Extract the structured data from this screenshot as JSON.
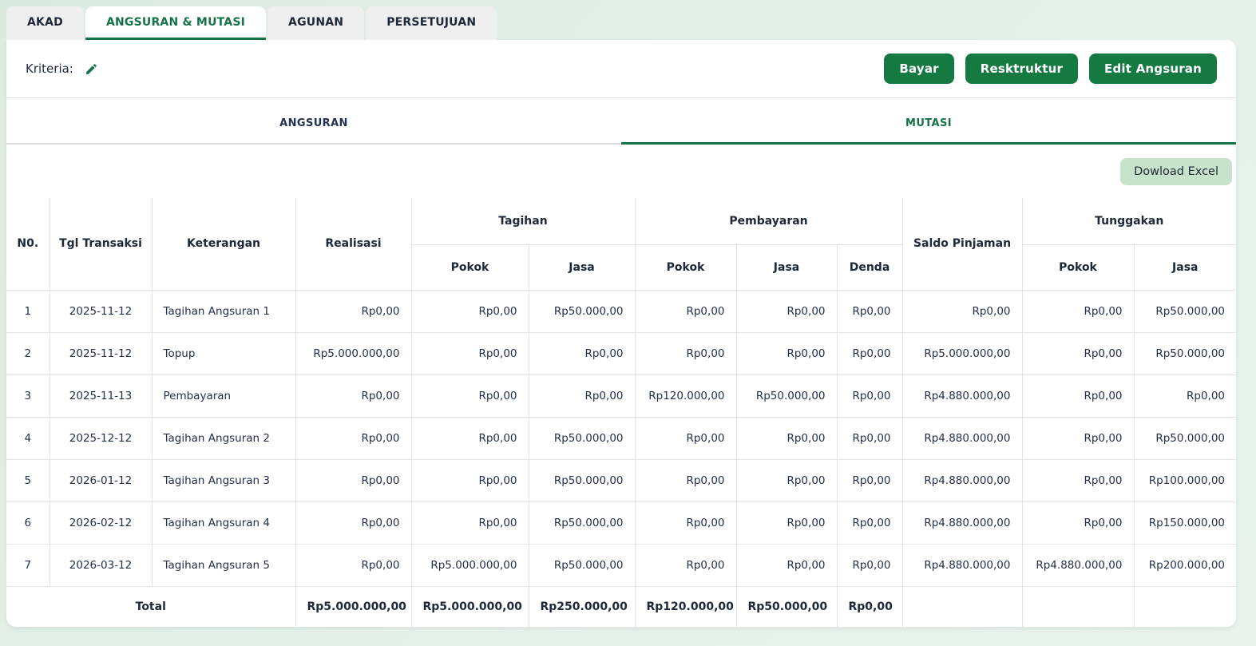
{
  "colors": {
    "accent_green": "#157347",
    "button_green": "#157a42",
    "excel_bg": "#c7e3cb",
    "page_bg": "#e3efe8",
    "inactive_tab_bg": "#efefef"
  },
  "tabs": [
    {
      "label": "AKAD",
      "active": false
    },
    {
      "label": "ANGSURAN & MUTASI",
      "active": true
    },
    {
      "label": "AGUNAN",
      "active": false
    },
    {
      "label": "PERSETUJUAN",
      "active": false
    }
  ],
  "kriteria": {
    "label": "Kriteria:",
    "edit_icon": "pencil-icon"
  },
  "actions": {
    "bayar": "Bayar",
    "resktruktur": "Resktruktur",
    "edit_angsuran": "Edit Angsuran"
  },
  "subtabs": [
    {
      "label": "ANGSURAN",
      "active": false
    },
    {
      "label": "MUTASI",
      "active": true
    }
  ],
  "download_button": "Dowload Excel",
  "table": {
    "headers": {
      "no": "N0.",
      "tgl": "Tgl Transaksi",
      "keterangan": "Keterangan",
      "realisasi": "Realisasi",
      "tagihan": "Tagihan",
      "pembayaran": "Pembayaran",
      "saldo": "Saldo Pinjaman",
      "tunggakan": "Tunggakan",
      "pokok": "Pokok",
      "jasa": "Jasa",
      "denda": "Denda"
    },
    "rows": [
      {
        "no": "1",
        "tgl": "2025-11-12",
        "keterangan": "Tagihan Angsuran 1",
        "realisasi": "Rp0,00",
        "tagihan_pokok": "Rp0,00",
        "tagihan_jasa": "Rp50.000,00",
        "pembayaran_pokok": "Rp0,00",
        "pembayaran_jasa": "Rp0,00",
        "denda": "Rp0,00",
        "saldo": "Rp0,00",
        "tunggakan_pokok": "Rp0,00",
        "tunggakan_jasa": "Rp50.000,00"
      },
      {
        "no": "2",
        "tgl": "2025-11-12",
        "keterangan": "Topup",
        "realisasi": "Rp5.000.000,00",
        "tagihan_pokok": "Rp0,00",
        "tagihan_jasa": "Rp0,00",
        "pembayaran_pokok": "Rp0,00",
        "pembayaran_jasa": "Rp0,00",
        "denda": "Rp0,00",
        "saldo": "Rp5.000.000,00",
        "tunggakan_pokok": "Rp0,00",
        "tunggakan_jasa": "Rp50.000,00"
      },
      {
        "no": "3",
        "tgl": "2025-11-13",
        "keterangan": "Pembayaran",
        "realisasi": "Rp0,00",
        "tagihan_pokok": "Rp0,00",
        "tagihan_jasa": "Rp0,00",
        "pembayaran_pokok": "Rp120.000,00",
        "pembayaran_jasa": "Rp50.000,00",
        "denda": "Rp0,00",
        "saldo": "Rp4.880.000,00",
        "tunggakan_pokok": "Rp0,00",
        "tunggakan_jasa": "Rp0,00"
      },
      {
        "no": "4",
        "tgl": "2025-12-12",
        "keterangan": "Tagihan Angsuran 2",
        "realisasi": "Rp0,00",
        "tagihan_pokok": "Rp0,00",
        "tagihan_jasa": "Rp50.000,00",
        "pembayaran_pokok": "Rp0,00",
        "pembayaran_jasa": "Rp0,00",
        "denda": "Rp0,00",
        "saldo": "Rp4.880.000,00",
        "tunggakan_pokok": "Rp0,00",
        "tunggakan_jasa": "Rp50.000,00"
      },
      {
        "no": "5",
        "tgl": "2026-01-12",
        "keterangan": "Tagihan Angsuran 3",
        "realisasi": "Rp0,00",
        "tagihan_pokok": "Rp0,00",
        "tagihan_jasa": "Rp50.000,00",
        "pembayaran_pokok": "Rp0,00",
        "pembayaran_jasa": "Rp0,00",
        "denda": "Rp0,00",
        "saldo": "Rp4.880.000,00",
        "tunggakan_pokok": "Rp0,00",
        "tunggakan_jasa": "Rp100.000,00"
      },
      {
        "no": "6",
        "tgl": "2026-02-12",
        "keterangan": "Tagihan Angsuran 4",
        "realisasi": "Rp0,00",
        "tagihan_pokok": "Rp0,00",
        "tagihan_jasa": "Rp50.000,00",
        "pembayaran_pokok": "Rp0,00",
        "pembayaran_jasa": "Rp0,00",
        "denda": "Rp0,00",
        "saldo": "Rp4.880.000,00",
        "tunggakan_pokok": "Rp0,00",
        "tunggakan_jasa": "Rp150.000,00"
      },
      {
        "no": "7",
        "tgl": "2026-03-12",
        "keterangan": "Tagihan Angsuran 5",
        "realisasi": "Rp0,00",
        "tagihan_pokok": "Rp5.000.000,00",
        "tagihan_jasa": "Rp50.000,00",
        "pembayaran_pokok": "Rp0,00",
        "pembayaran_jasa": "Rp0,00",
        "denda": "Rp0,00",
        "saldo": "Rp4.880.000,00",
        "tunggakan_pokok": "Rp4.880.000,00",
        "tunggakan_jasa": "Rp200.000,00"
      }
    ],
    "total": {
      "label": "Total",
      "realisasi": "Rp5.000.000,00",
      "tagihan_pokok": "Rp5.000.000,00",
      "tagihan_jasa": "Rp250.000,00",
      "pembayaran_pokok": "Rp120.000,00",
      "pembayaran_jasa": "Rp50.000,00",
      "denda": "Rp0,00",
      "saldo": "",
      "tunggakan_pokok": "",
      "tunggakan_jasa": ""
    }
  }
}
